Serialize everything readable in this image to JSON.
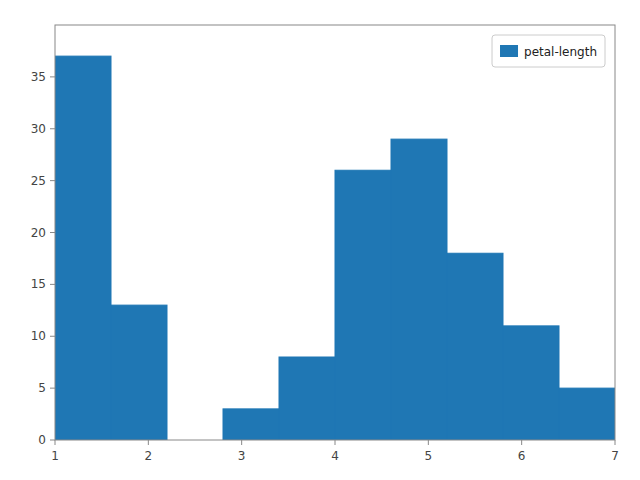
{
  "chart_data": {
    "type": "histogram",
    "bins": [
      1.0,
      1.6,
      2.2,
      2.8,
      3.4,
      4.0,
      4.6,
      5.2,
      5.8,
      6.4,
      7.0
    ],
    "series": [
      {
        "name": "petal-length",
        "color": "#1f77b4",
        "values": [
          37,
          13,
          0,
          3,
          8,
          26,
          29,
          18,
          11,
          5
        ]
      }
    ],
    "xlim": [
      1.0,
      7.0
    ],
    "ylim": [
      0,
      40
    ],
    "xticks": [
      1,
      2,
      3,
      4,
      5,
      6,
      7
    ],
    "yticks": [
      0,
      5,
      10,
      15,
      20,
      25,
      30,
      35
    ],
    "legend": "upper-right",
    "grid": false
  }
}
